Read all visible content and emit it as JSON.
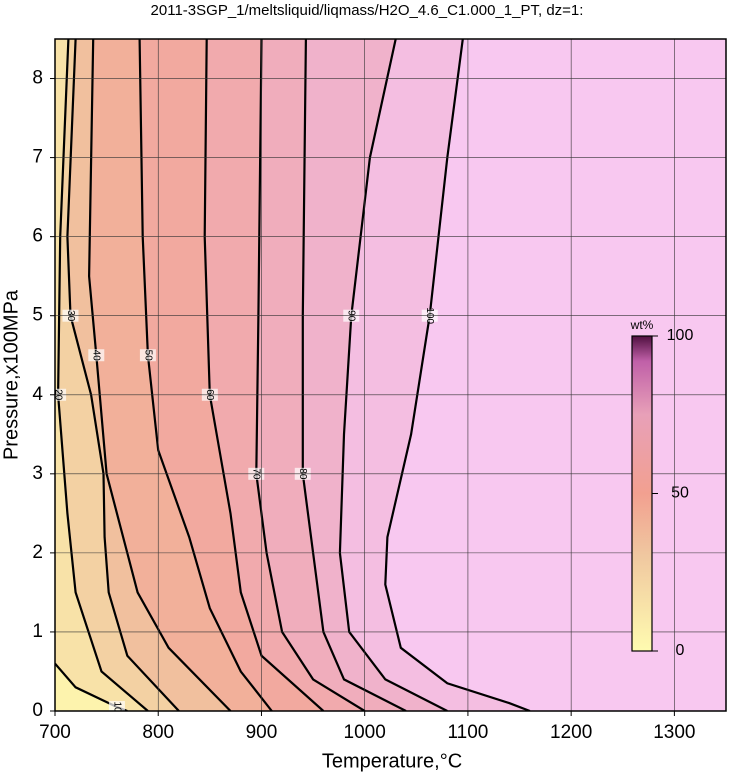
{
  "chart_data": {
    "type": "contour",
    "title": "2011-3SGP_1/meltsliquid/liqmass/H2O_4.6_C1.000_1_PT, dz=1:",
    "xlabel": "Temperature,°C",
    "ylabel": "Pressure,x100MPa",
    "xlim": [
      700,
      1350
    ],
    "ylim": [
      0,
      8.5
    ],
    "xticks": [
      700,
      800,
      900,
      1000,
      1100,
      1200,
      1300
    ],
    "yticks": [
      0,
      1,
      2,
      3,
      4,
      5,
      6,
      7,
      8
    ],
    "grid": true,
    "colorbar": {
      "label": "wt%",
      "lim": [
        0,
        100
      ],
      "ticks": [
        0,
        50,
        100
      ]
    },
    "contours": [
      {
        "level": 100,
        "x": [
          1095,
          1080,
          1063,
          1045,
          1022,
          1020,
          1035,
          1080,
          1140,
          1160
        ],
        "y": [
          8.5,
          7,
          5,
          3.5,
          2.2,
          1.6,
          0.8,
          0.35,
          0.1,
          0
        ]
      },
      {
        "level": 90,
        "x": [
          1030,
          1005,
          987,
          980,
          976,
          985,
          1020,
          1080
        ],
        "y": [
          8.5,
          7,
          5,
          3.5,
          2,
          1,
          0.4,
          0
        ]
      },
      {
        "level": 80,
        "x": [
          943,
          940,
          940,
          950,
          960,
          980,
          1040
        ],
        "y": [
          8.5,
          5,
          3,
          2,
          1,
          0.4,
          0
        ]
      },
      {
        "level": 70,
        "x": [
          900,
          897,
          895,
          905,
          920,
          950,
          1000
        ],
        "y": [
          8.5,
          5,
          3,
          2,
          1,
          0.4,
          0
        ]
      },
      {
        "level": 60,
        "x": [
          847,
          845,
          850,
          870,
          880,
          900,
          960
        ],
        "y": [
          8.5,
          6,
          4,
          2.5,
          1.5,
          0.7,
          0
        ]
      },
      {
        "level": 50,
        "x": [
          782,
          785,
          790,
          800,
          830,
          850,
          880,
          910
        ],
        "y": [
          8.5,
          6,
          4.5,
          3.3,
          2.2,
          1.3,
          0.5,
          0
        ]
      },
      {
        "level": 40,
        "x": [
          737,
          733,
          740,
          750,
          762,
          780,
          810,
          870
        ],
        "y": [
          8.5,
          5.5,
          4.5,
          3,
          2.4,
          1.5,
          0.8,
          0
        ]
      },
      {
        "level": 30,
        "x": [
          720,
          712,
          715,
          735,
          747,
          748,
          752,
          770,
          820
        ],
        "y": [
          8.5,
          6,
          5,
          4,
          3,
          2.2,
          1.5,
          0.7,
          0
        ]
      },
      {
        "level": 20,
        "x": [
          713,
          705,
          703,
          712,
          720,
          745,
          790
        ],
        "y": [
          8.5,
          6,
          4,
          2.5,
          1.5,
          0.5,
          0
        ]
      },
      {
        "level": 10,
        "x": [
          700,
          720,
          760,
          770
        ],
        "y": [
          0.6,
          0.3,
          0.05,
          0
        ]
      }
    ]
  }
}
